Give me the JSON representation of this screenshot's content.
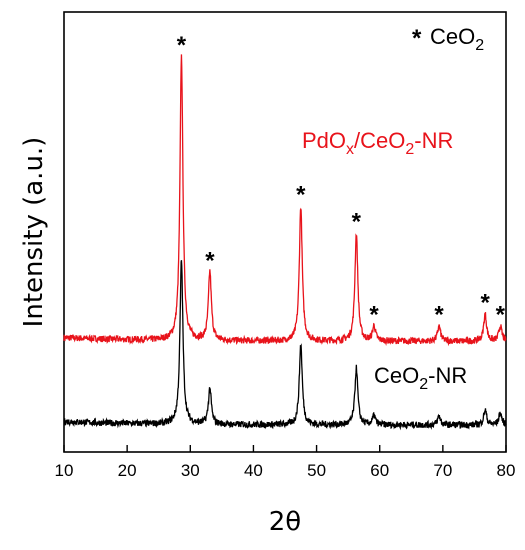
{
  "chart_data": {
    "type": "line",
    "xlabel": "2θ",
    "ylabel": "Intensity (a.u.)",
    "xlim": [
      10,
      80
    ],
    "x_ticks": [
      "10",
      "20",
      "30",
      "40",
      "50",
      "60",
      "70",
      "80"
    ],
    "legend_marker": "*",
    "legend_text": "CeO",
    "legend_sub": "2",
    "series": [
      {
        "name": "PdOx/CeO2-NR",
        "color": "#e8131b",
        "label_parts": [
          "PdO",
          "x",
          "/CeO",
          "2",
          "-NR"
        ],
        "baseline": 0.28,
        "peaks": [
          [
            28.6,
            0.95
          ],
          [
            33.1,
            0.23
          ],
          [
            47.5,
            0.45
          ],
          [
            56.3,
            0.36
          ],
          [
            59.1,
            0.05
          ],
          [
            69.4,
            0.05
          ],
          [
            76.7,
            0.09
          ],
          [
            79.1,
            0.05
          ]
        ]
      },
      {
        "name": "CeO2-NR",
        "color": "#000000",
        "label_parts": [
          "CeO",
          "2",
          "-NR"
        ],
        "baseline": 0.0,
        "peaks": [
          [
            28.6,
            0.55
          ],
          [
            33.1,
            0.12
          ],
          [
            47.5,
            0.27
          ],
          [
            56.3,
            0.19
          ],
          [
            59.1,
            0.03
          ],
          [
            69.4,
            0.03
          ],
          [
            76.7,
            0.05
          ],
          [
            79.1,
            0.04
          ]
        ]
      }
    ],
    "annotations": [
      {
        "text": "*",
        "x": 28.6
      },
      {
        "text": "*",
        "x": 33.1
      },
      {
        "text": "*",
        "x": 47.5
      },
      {
        "text": "*",
        "x": 56.3
      },
      {
        "text": "*",
        "x": 59.1
      },
      {
        "text": "*",
        "x": 69.4
      },
      {
        "text": "*",
        "x": 76.7
      },
      {
        "text": "*",
        "x": 79.1
      }
    ],
    "colors": {
      "pd_series": "#e8131b",
      "ce_series": "#000000"
    }
  }
}
